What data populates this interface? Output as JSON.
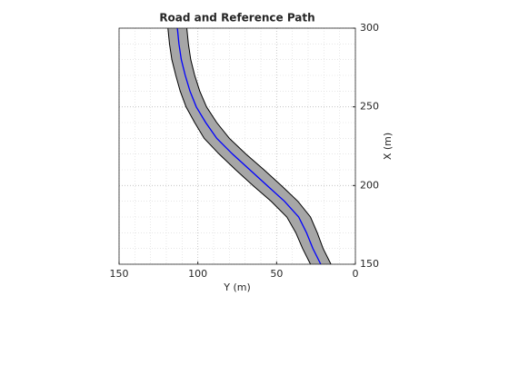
{
  "chart_data": {
    "type": "line",
    "title": "Road and Reference Path",
    "xlabel": "Y (m)",
    "ylabel": "X (m)",
    "xlim": [
      150,
      0
    ],
    "xticks": [
      150,
      100,
      50,
      0
    ],
    "ylim": [
      150,
      300
    ],
    "yticks": [
      150,
      200,
      250,
      300
    ],
    "y_axis_side": "right",
    "grid": true,
    "minor_grid": true,
    "series": [
      {
        "role": "road-edge",
        "color": "#000000",
        "fill": "#a6a6a6",
        "x": [
          28.5,
          33.5,
          37.8,
          43.5,
          53.5,
          65,
          76,
          86.5,
          96,
          102,
          107.5,
          111.2,
          114,
          116.5,
          118,
          119
        ],
        "y": [
          150,
          160,
          170,
          180,
          190,
          200,
          210,
          220,
          230,
          240,
          250,
          260,
          270,
          280,
          290,
          300
        ]
      },
      {
        "role": "road-edge",
        "color": "#000000",
        "fill": "#a6a6a6",
        "x": [
          15.5,
          20.5,
          24.2,
          28.5,
          36.5,
          47,
          58,
          69.5,
          80,
          88,
          94.5,
          98.8,
          102,
          104.5,
          106,
          107
        ],
        "y": [
          150,
          160,
          170,
          180,
          190,
          200,
          210,
          220,
          230,
          240,
          250,
          260,
          270,
          280,
          290,
          300
        ]
      },
      {
        "role": "reference-path",
        "color": "#0000ff",
        "x": [
          22,
          27,
          31,
          36,
          45,
          56,
          67,
          78,
          88,
          95,
          101,
          105,
          108,
          110.5,
          112,
          113
        ],
        "y": [
          150,
          160,
          170,
          180,
          190,
          200,
          210,
          220,
          230,
          240,
          250,
          260,
          270,
          280,
          290,
          300
        ]
      }
    ]
  }
}
